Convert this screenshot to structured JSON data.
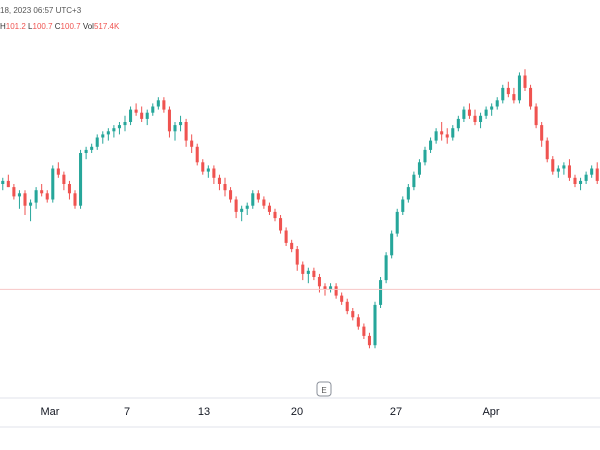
{
  "header": {
    "datetime": "18, 2023 06:57 UTC+3",
    "ohlc_high_label": "H",
    "ohlc_high": "101.2",
    "ohlc_low_label": "L",
    "ohlc_low": "100.7",
    "ohlc_close_label": "C",
    "ohlc_close": "100.7",
    "ohlc_vol_label": "Vol",
    "ohlc_vol": "517.4K"
  },
  "event_marker": "E",
  "colors": {
    "up": "#26a69a",
    "down": "#ef5350",
    "axis_text": "#131722",
    "grid": "#e0e3eb",
    "ref_line": "#f7c6c6"
  },
  "chart_data": {
    "type": "candlestick",
    "x_tick_labels": [
      "Mar",
      "7",
      "13",
      "20",
      "27",
      "Apr"
    ],
    "y_range": [
      0,
      100
    ],
    "reference_level": 26,
    "candles": [
      [
        60,
        62,
        58,
        61
      ],
      [
        61,
        63,
        59,
        59
      ],
      [
        59,
        60,
        55,
        56
      ],
      [
        56,
        58,
        52,
        57
      ],
      [
        57,
        58,
        50,
        53
      ],
      [
        53,
        55,
        48,
        54
      ],
      [
        54,
        59,
        52,
        58
      ],
      [
        58,
        60,
        56,
        57
      ],
      [
        57,
        58,
        54,
        55
      ],
      [
        55,
        66,
        54,
        65
      ],
      [
        65,
        67,
        62,
        63
      ],
      [
        63,
        64,
        58,
        60
      ],
      [
        60,
        61,
        55,
        57
      ],
      [
        57,
        58,
        52,
        53
      ],
      [
        53,
        71,
        52,
        70
      ],
      [
        70,
        72,
        68,
        71
      ],
      [
        71,
        73,
        70,
        72
      ],
      [
        72,
        76,
        71,
        75
      ],
      [
        75,
        77,
        73,
        76
      ],
      [
        76,
        78,
        74,
        77
      ],
      [
        77,
        79,
        75,
        78
      ],
      [
        78,
        80,
        76,
        79
      ],
      [
        79,
        82,
        77,
        80
      ],
      [
        80,
        85,
        79,
        84
      ],
      [
        84,
        86,
        82,
        83
      ],
      [
        83,
        85,
        80,
        81
      ],
      [
        81,
        84,
        79,
        83
      ],
      [
        83,
        86,
        82,
        85
      ],
      [
        85,
        88,
        84,
        87
      ],
      [
        87,
        88,
        83,
        84
      ],
      [
        84,
        85,
        75,
        77
      ],
      [
        77,
        80,
        74,
        79
      ],
      [
        79,
        82,
        77,
        80
      ],
      [
        80,
        81,
        72,
        74
      ],
      [
        74,
        76,
        70,
        72
      ],
      [
        72,
        73,
        66,
        67
      ],
      [
        67,
        68,
        63,
        64
      ],
      [
        64,
        66,
        62,
        65
      ],
      [
        65,
        66,
        60,
        62
      ],
      [
        62,
        63,
        58,
        60
      ],
      [
        60,
        62,
        56,
        58
      ],
      [
        58,
        59,
        54,
        55
      ],
      [
        55,
        56,
        49,
        51
      ],
      [
        51,
        53,
        48,
        52
      ],
      [
        52,
        54,
        50,
        53
      ],
      [
        53,
        58,
        52,
        57
      ],
      [
        57,
        58,
        54,
        55
      ],
      [
        55,
        56,
        52,
        53
      ],
      [
        53,
        54,
        50,
        51
      ],
      [
        51,
        52,
        48,
        49
      ],
      [
        49,
        50,
        44,
        45
      ],
      [
        45,
        46,
        40,
        41
      ],
      [
        41,
        42,
        38,
        39
      ],
      [
        39,
        40,
        32,
        34
      ],
      [
        34,
        35,
        29,
        31
      ],
      [
        31,
        33,
        28,
        32
      ],
      [
        32,
        33,
        29,
        30
      ],
      [
        30,
        31,
        25,
        27
      ],
      [
        27,
        28,
        24,
        26
      ],
      [
        26,
        28,
        25,
        27
      ],
      [
        27,
        28,
        23,
        24
      ],
      [
        24,
        25,
        21,
        22
      ],
      [
        22,
        23,
        18,
        19
      ],
      [
        19,
        20,
        16,
        17
      ],
      [
        17,
        18,
        13,
        14
      ],
      [
        14,
        15,
        10,
        11
      ],
      [
        11,
        12,
        7,
        8
      ],
      [
        8,
        22,
        7,
        21
      ],
      [
        21,
        30,
        20,
        29
      ],
      [
        29,
        38,
        28,
        37
      ],
      [
        37,
        45,
        36,
        44
      ],
      [
        44,
        52,
        43,
        51
      ],
      [
        51,
        56,
        50,
        55
      ],
      [
        55,
        60,
        54,
        59
      ],
      [
        59,
        64,
        58,
        63
      ],
      [
        63,
        68,
        62,
        67
      ],
      [
        67,
        72,
        66,
        71
      ],
      [
        71,
        75,
        70,
        74
      ],
      [
        74,
        78,
        73,
        77
      ],
      [
        77,
        80,
        74,
        76
      ],
      [
        76,
        78,
        73,
        75
      ],
      [
        75,
        79,
        74,
        78
      ],
      [
        78,
        82,
        77,
        81
      ],
      [
        81,
        85,
        80,
        84
      ],
      [
        84,
        86,
        81,
        82
      ],
      [
        82,
        84,
        79,
        80
      ],
      [
        80,
        83,
        78,
        82
      ],
      [
        82,
        85,
        81,
        84
      ],
      [
        84,
        86,
        82,
        85
      ],
      [
        85,
        88,
        84,
        87
      ],
      [
        87,
        92,
        86,
        91
      ],
      [
        91,
        93,
        88,
        89
      ],
      [
        89,
        91,
        86,
        87
      ],
      [
        87,
        96,
        86,
        95
      ],
      [
        95,
        97,
        90,
        91
      ],
      [
        91,
        92,
        84,
        85
      ],
      [
        85,
        86,
        78,
        79
      ],
      [
        79,
        80,
        72,
        74
      ],
      [
        74,
        75,
        67,
        68
      ],
      [
        68,
        69,
        63,
        64
      ],
      [
        64,
        66,
        62,
        65
      ],
      [
        65,
        67,
        63,
        66
      ],
      [
        66,
        68,
        61,
        62
      ],
      [
        62,
        63,
        59,
        60
      ],
      [
        60,
        62,
        58,
        61
      ],
      [
        61,
        64,
        60,
        63
      ],
      [
        63,
        66,
        62,
        65
      ],
      [
        65,
        67,
        60,
        61
      ]
    ]
  }
}
